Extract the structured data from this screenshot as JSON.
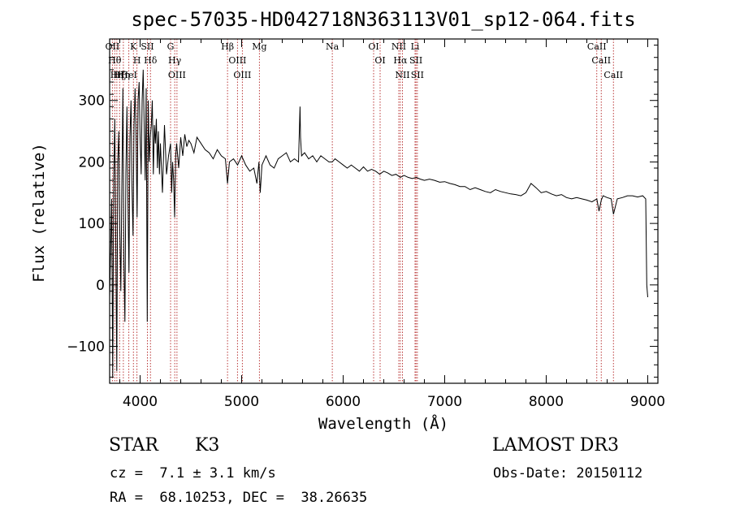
{
  "chart_data": {
    "type": "line",
    "title": "spec-57035-HD042718N363113V01_sp12-064.fits",
    "xlabel": "Wavelength (Å)",
    "ylabel": "Flux (relative)",
    "xlim": [
      3700,
      9100
    ],
    "ylim": [
      -160,
      400
    ],
    "x_ticks": [
      4000,
      5000,
      6000,
      7000,
      8000,
      9000
    ],
    "y_ticks": [
      -100,
      0,
      100,
      200,
      300
    ],
    "grid": false,
    "series": [
      {
        "name": "spectrum",
        "x": [
          3700,
          3710,
          3720,
          3730,
          3740,
          3750,
          3760,
          3770,
          3780,
          3790,
          3800,
          3810,
          3820,
          3830,
          3840,
          3850,
          3860,
          3870,
          3880,
          3890,
          3900,
          3910,
          3920,
          3930,
          3940,
          3950,
          3960,
          3970,
          3980,
          3990,
          4000,
          4010,
          4020,
          4030,
          4040,
          4050,
          4060,
          4070,
          4080,
          4090,
          4100,
          4110,
          4120,
          4130,
          4140,
          4150,
          4160,
          4170,
          4180,
          4190,
          4200,
          4220,
          4240,
          4260,
          4280,
          4300,
          4310,
          4320,
          4330,
          4340,
          4350,
          4360,
          4380,
          4400,
          4420,
          4440,
          4460,
          4480,
          4500,
          4530,
          4560,
          4600,
          4640,
          4680,
          4720,
          4760,
          4800,
          4840,
          4861,
          4880,
          4920,
          4960,
          5000,
          5040,
          5080,
          5120,
          5150,
          5170,
          5183,
          5200,
          5240,
          5280,
          5320,
          5360,
          5400,
          5440,
          5480,
          5520,
          5560,
          5575,
          5580,
          5590,
          5620,
          5660,
          5700,
          5740,
          5780,
          5820,
          5860,
          5893,
          5920,
          5960,
          6000,
          6040,
          6080,
          6120,
          6160,
          6200,
          6240,
          6280,
          6320,
          6360,
          6400,
          6440,
          6480,
          6520,
          6563,
          6600,
          6640,
          6680,
          6720,
          6760,
          6800,
          6850,
          6900,
          6950,
          7000,
          7050,
          7100,
          7150,
          7200,
          7250,
          7300,
          7350,
          7400,
          7450,
          7500,
          7550,
          7600,
          7650,
          7700,
          7750,
          7800,
          7850,
          7900,
          7950,
          8000,
          8050,
          8100,
          8150,
          8200,
          8250,
          8300,
          8350,
          8400,
          8450,
          8498,
          8520,
          8542,
          8560,
          8600,
          8640,
          8662,
          8700,
          8750,
          8800,
          8850,
          8900,
          8950,
          8980,
          8990,
          9000
        ],
        "values": [
          -20,
          60,
          140,
          -150,
          170,
          270,
          80,
          -140,
          200,
          250,
          90,
          -10,
          160,
          320,
          40,
          -60,
          180,
          290,
          140,
          20,
          240,
          300,
          160,
          80,
          260,
          320,
          240,
          110,
          300,
          330,
          240,
          180,
          300,
          350,
          260,
          170,
          320,
          -60,
          300,
          200,
          240,
          260,
          300,
          180,
          260,
          230,
          270,
          190,
          250,
          180,
          230,
          150,
          260,
          180,
          210,
          230,
          150,
          200,
          170,
          110,
          210,
          230,
          190,
          240,
          210,
          245,
          225,
          235,
          230,
          215,
          240,
          230,
          220,
          215,
          205,
          220,
          210,
          205,
          165,
          200,
          205,
          195,
          210,
          195,
          185,
          190,
          165,
          200,
          150,
          195,
          210,
          195,
          190,
          205,
          210,
          215,
          200,
          205,
          200,
          290,
          240,
          210,
          215,
          205,
          210,
          200,
          210,
          205,
          200,
          200,
          205,
          200,
          195,
          190,
          195,
          190,
          185,
          192,
          185,
          188,
          185,
          180,
          185,
          182,
          178,
          180,
          175,
          178,
          175,
          173,
          175,
          172,
          170,
          172,
          170,
          167,
          168,
          165,
          163,
          160,
          160,
          155,
          158,
          155,
          152,
          150,
          155,
          152,
          150,
          148,
          147,
          145,
          150,
          165,
          158,
          150,
          152,
          148,
          145,
          147,
          142,
          140,
          142,
          140,
          138,
          135,
          140,
          120,
          138,
          145,
          142,
          140,
          115,
          140,
          142,
          145,
          145,
          143,
          145,
          140,
          0,
          -20
        ]
      }
    ],
    "lines": [
      {
        "wl": 3727,
        "labels": [
          "OII"
        ]
      },
      {
        "wl": 3750,
        "labels": [
          "Hθ"
        ]
      },
      {
        "wl": 3771,
        "labels": [
          "Hη"
        ]
      },
      {
        "wl": 3798,
        "labels": [
          "Hζ"
        ]
      },
      {
        "wl": 3835,
        "labels": [
          "Hη"
        ]
      },
      {
        "wl": 3889,
        "labels": [
          "HeI"
        ]
      },
      {
        "wl": 3934,
        "labels": [
          "K"
        ]
      },
      {
        "wl": 3969,
        "labels": [
          "H"
        ]
      },
      {
        "wl": 4072,
        "labels": [
          "SII"
        ]
      },
      {
        "wl": 4102,
        "labels": [
          "Hδ"
        ]
      },
      {
        "wl": 4300,
        "labels": [
          "G"
        ]
      },
      {
        "wl": 4341,
        "labels": [
          "Hγ"
        ]
      },
      {
        "wl": 4363,
        "labels": [
          "OIII"
        ]
      },
      {
        "wl": 4861,
        "labels": [
          "Hβ"
        ]
      },
      {
        "wl": 4959,
        "labels": [
          "OIII"
        ]
      },
      {
        "wl": 5007,
        "labels": [
          "OIII"
        ]
      },
      {
        "wl": 5175,
        "labels": [
          "Mg"
        ]
      },
      {
        "wl": 5893,
        "labels": [
          "Na"
        ]
      },
      {
        "wl": 6300,
        "labels": [
          "OI"
        ]
      },
      {
        "wl": 6364,
        "labels": [
          "OI"
        ]
      },
      {
        "wl": 6548,
        "labels": [
          "NII"
        ]
      },
      {
        "wl": 6563,
        "labels": [
          "Hα"
        ]
      },
      {
        "wl": 6584,
        "labels": [
          "NII"
        ]
      },
      {
        "wl": 6708,
        "labels": [
          "Li"
        ]
      },
      {
        "wl": 6717,
        "labels": [
          "SII"
        ]
      },
      {
        "wl": 6731,
        "labels": [
          "SII"
        ]
      },
      {
        "wl": 8498,
        "labels": [
          "CaII"
        ]
      },
      {
        "wl": 8542,
        "labels": [
          "CaII"
        ]
      },
      {
        "wl": 8662,
        "labels": [
          "CaII"
        ]
      }
    ]
  },
  "info": {
    "object_class": "STAR",
    "subclass": "K3",
    "redshift": "cz =  7.1 ± 3.1 km/s",
    "coords": "RA =  68.10253, DEC =  38.26635",
    "survey": "LAMOST DR3",
    "obs_date": "Obs-Date: 20150112"
  },
  "colors": {
    "spectrum": "#000000",
    "line_markers": "#b22222",
    "axes": "#000000"
  }
}
